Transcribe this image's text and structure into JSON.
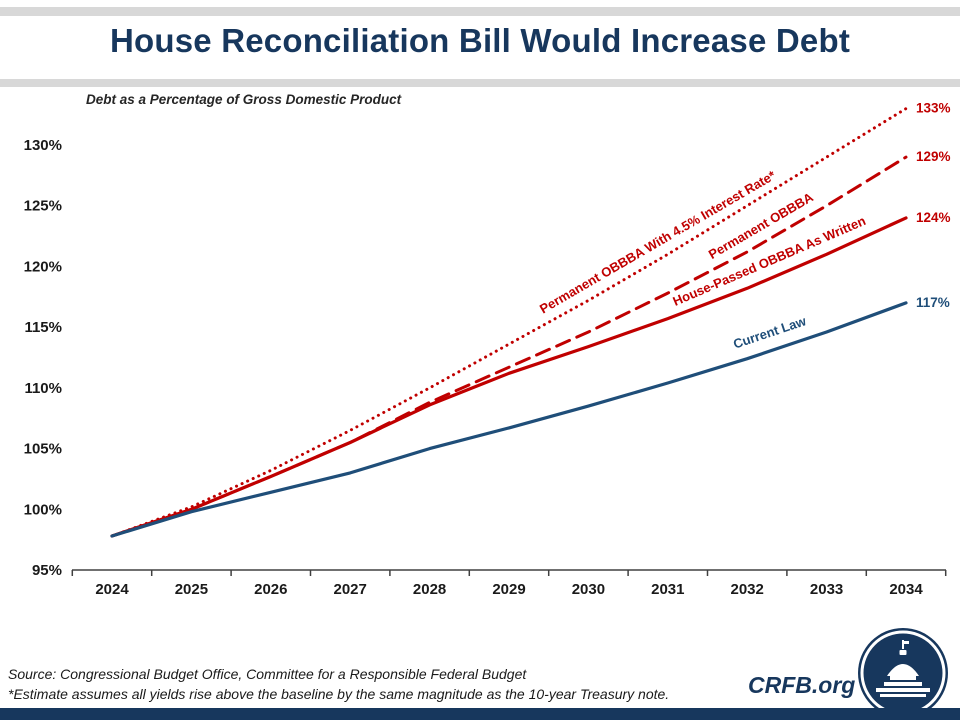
{
  "header": {
    "title": "House Reconciliation Bill Would Increase Debt"
  },
  "chart_data": {
    "type": "line",
    "title": "House Reconciliation Bill Would Increase Debt",
    "subtitle": "Debt as a Percentage of Gross Domestic Product",
    "x": [
      2024,
      2025,
      2026,
      2027,
      2028,
      2029,
      2030,
      2031,
      2032,
      2033,
      2034
    ],
    "x_tick_labels": [
      "2024",
      "2025",
      "2026",
      "2027",
      "2028",
      "2029",
      "2030",
      "2031",
      "2032",
      "2033",
      "2034"
    ],
    "y_ticks": [
      95,
      100,
      105,
      110,
      115,
      120,
      125,
      130
    ],
    "y_tick_suffix": "%",
    "ylim": [
      95,
      135
    ],
    "grid": false,
    "legend": "inline-labels",
    "series": [
      {
        "id": "permanent_obbba_45",
        "name": "Permanent OBBBA With 4.5% Interest Rate*",
        "style": "dotted",
        "color": "#c00000",
        "values": [
          97.8,
          100.2,
          103.2,
          106.5,
          110.0,
          113.6,
          117.2,
          121.0,
          125.0,
          129.0,
          133.0
        ],
        "end_label": "133%"
      },
      {
        "id": "permanent_obbba",
        "name": "Permanent OBBBA",
        "style": "dashed",
        "color": "#c00000",
        "values": [
          97.8,
          100.0,
          102.7,
          105.5,
          108.8,
          111.7,
          114.6,
          117.8,
          121.2,
          125.0,
          129.0
        ],
        "end_label": "129%"
      },
      {
        "id": "house_passed",
        "name": "House-Passed OBBBA As Written",
        "style": "solid",
        "color": "#c00000",
        "values": [
          97.8,
          100.0,
          102.7,
          105.5,
          108.6,
          111.2,
          113.4,
          115.7,
          118.2,
          121.0,
          124.0
        ],
        "end_label": "124%"
      },
      {
        "id": "current_law",
        "name": "Current Law",
        "style": "solid",
        "color": "#1f4e79",
        "values": [
          97.8,
          99.8,
          101.4,
          103.0,
          105.0,
          106.7,
          108.5,
          110.4,
          112.4,
          114.6,
          117.0
        ],
        "end_label": "117%"
      }
    ]
  },
  "footer": {
    "source_line": "Source: Congressional Budget Office, Committee for a Responsible Federal Budget",
    "note_line": "*Estimate assumes all yields rise above the baseline by the same magnitude as the 10-year Treasury note.",
    "brand": "CRFB.org",
    "logo_icon": "capitol-dome-icon"
  },
  "colors": {
    "title_navy": "#17375d",
    "line_red": "#c00000",
    "line_navy": "#1f4e79",
    "stripe_gray": "#d8d8d8"
  }
}
